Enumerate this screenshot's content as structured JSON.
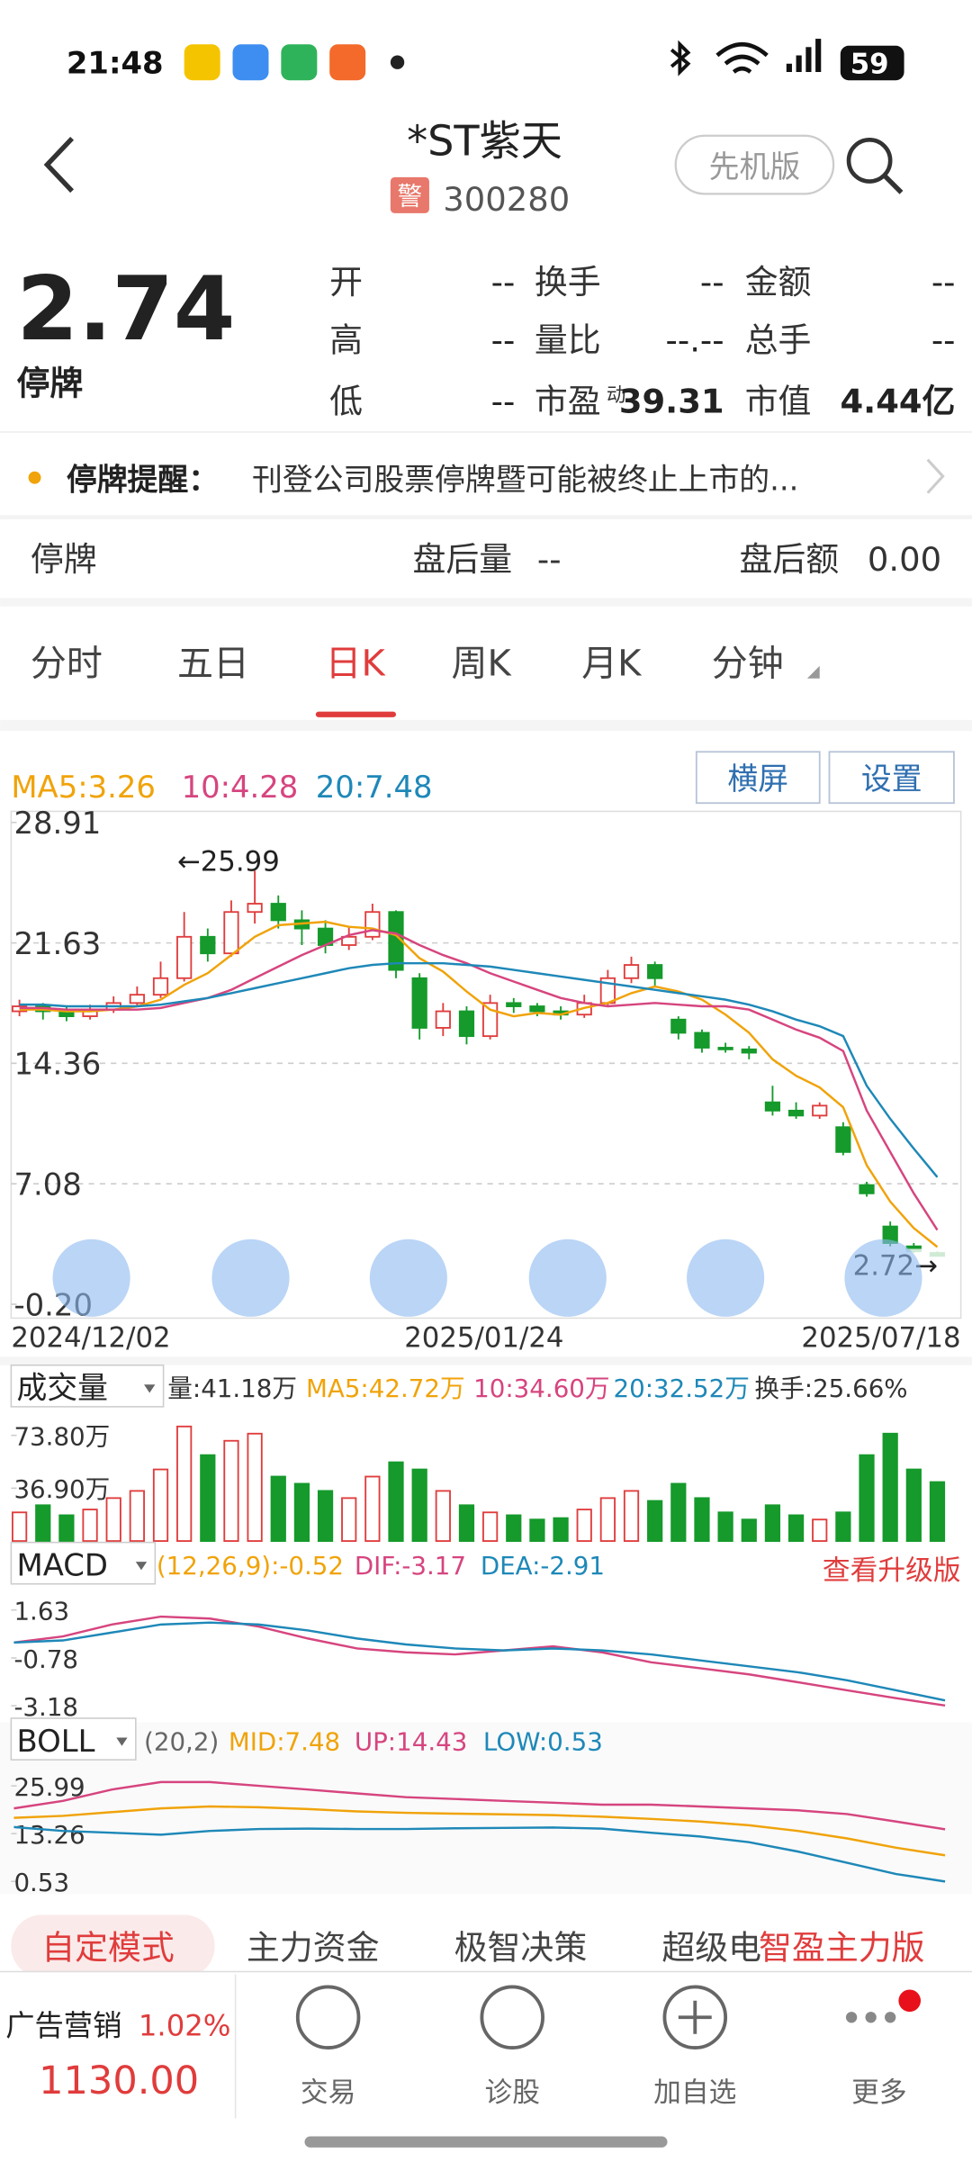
{
  "status_bar": {
    "time": "21:48",
    "battery": "59"
  },
  "header": {
    "title": "*ST紫天",
    "badge": "警",
    "code": "300280",
    "mode_button": "先机版"
  },
  "quote": {
    "price": "2.74",
    "state": "停牌",
    "stats": [
      [
        {
          "label": "开",
          "value": "--"
        },
        {
          "label": "换手",
          "value": "--"
        },
        {
          "label": "金额",
          "value": "--"
        }
      ],
      [
        {
          "label": "高",
          "value": "--"
        },
        {
          "label": "量比",
          "value": "--.--"
        },
        {
          "label": "总手",
          "value": "--"
        }
      ],
      [
        {
          "label": "低",
          "value": "--"
        },
        {
          "label": "市盈",
          "sup": "动",
          "value": "39.31"
        },
        {
          "label": "市值",
          "value": "4.44亿"
        }
      ]
    ]
  },
  "notice": {
    "title": "停牌提醒：",
    "text": "刊登公司股票停牌暨可能被终止上市的..."
  },
  "after_hours": {
    "state": "停牌",
    "volume_label": "盘后量",
    "volume_value": "--",
    "amount_label": "盘后额",
    "amount_value": "0.00"
  },
  "tabs": [
    "分时",
    "五日",
    "日K",
    "周K",
    "月K",
    "分钟"
  ],
  "chart_buttons": [
    "横屏",
    "设置"
  ],
  "kline": {
    "type": "candlestick",
    "legend": [
      "MA5:3.26",
      "10:4.28",
      "20:7.48"
    ],
    "ylim": [
      -0.2,
      28.91
    ],
    "yticks": [
      28.91,
      21.63,
      14.36,
      7.08,
      {
        "value": -0.2,
        "label": "-0.20"
      }
    ],
    "annotations": [
      "←25.99",
      "2.72→"
    ],
    "dates": [
      "2024/12/02",
      "2025/01/24",
      "2025/07/18"
    ],
    "candles": [
      [
        17.5,
        17.8,
        18.2,
        17.2
      ],
      [
        17.8,
        17.5,
        18.0,
        17.0
      ],
      [
        17.5,
        17.2,
        17.8,
        16.9
      ],
      [
        17.2,
        17.6,
        17.9,
        17.0
      ],
      [
        17.6,
        18.0,
        18.4,
        17.4
      ],
      [
        18.0,
        18.5,
        19.0,
        17.8
      ],
      [
        18.5,
        19.5,
        20.5,
        18.3
      ],
      [
        19.5,
        22.0,
        23.5,
        19.3
      ],
      [
        22.0,
        21.0,
        22.5,
        20.5
      ],
      [
        21.0,
        23.5,
        24.2,
        20.8
      ],
      [
        23.5,
        24.0,
        25.99,
        22.8
      ],
      [
        24.0,
        23.0,
        24.5,
        22.5
      ],
      [
        23.0,
        22.5,
        23.6,
        21.5
      ],
      [
        22.5,
        21.5,
        23.0,
        21.0
      ],
      [
        21.5,
        22.0,
        22.6,
        21.2
      ],
      [
        22.0,
        23.5,
        24.0,
        21.8
      ],
      [
        23.5,
        20.0,
        23.6,
        19.5
      ],
      [
        19.5,
        16.5,
        19.8,
        15.8
      ],
      [
        16.5,
        17.5,
        18.0,
        16.0
      ],
      [
        17.5,
        16.0,
        17.8,
        15.5
      ],
      [
        16.0,
        18.0,
        18.5,
        15.8
      ],
      [
        18.0,
        17.8,
        18.3,
        17.4
      ],
      [
        17.8,
        17.5,
        18.0,
        17.2
      ],
      [
        17.5,
        17.3,
        17.8,
        17.0
      ],
      [
        17.3,
        18.0,
        18.5,
        17.1
      ],
      [
        18.0,
        19.5,
        20.0,
        17.8
      ],
      [
        19.5,
        20.3,
        20.8,
        19.2
      ],
      [
        20.3,
        19.5,
        20.5,
        19.0
      ],
      [
        17.0,
        16.2,
        17.2,
        15.8
      ],
      [
        16.2,
        15.3,
        16.4,
        15.0
      ],
      [
        15.3,
        15.2,
        15.6,
        15.0
      ],
      [
        15.2,
        15.0,
        15.4,
        14.6
      ],
      [
        12.0,
        11.5,
        13.0,
        11.2
      ],
      [
        11.5,
        11.2,
        12.0,
        11.0
      ],
      [
        11.2,
        11.8,
        12.0,
        11.0
      ],
      [
        10.5,
        9.0,
        10.8,
        8.8
      ],
      [
        7.0,
        6.5,
        7.2,
        6.3
      ],
      [
        4.5,
        3.5,
        4.8,
        3.3
      ],
      [
        3.3,
        3.0,
        3.5,
        2.9
      ],
      [
        2.9,
        2.72,
        3.0,
        2.7
      ]
    ],
    "series": [
      {
        "name": "MA5",
        "color": "#f0a30a",
        "values": [
          17.6,
          17.6,
          17.5,
          17.5,
          17.6,
          17.8,
          18.2,
          19.1,
          19.8,
          20.9,
          22.0,
          22.7,
          22.8,
          22.9,
          22.6,
          22.5,
          22.1,
          20.7,
          19.9,
          18.7,
          17.6,
          17.2,
          17.4,
          17.3,
          17.7,
          18.0,
          18.6,
          19.0,
          18.7,
          18.2,
          17.3,
          16.2,
          14.6,
          13.6,
          12.9,
          11.7,
          8.2,
          6.0,
          4.4,
          3.26
        ]
      },
      {
        "name": "MA10",
        "color": "#d6457f",
        "values": [
          17.7,
          17.7,
          17.6,
          17.6,
          17.6,
          17.6,
          17.7,
          18.0,
          18.3,
          18.8,
          19.5,
          20.2,
          20.9,
          21.5,
          22.1,
          22.4,
          22.2,
          21.5,
          20.9,
          20.4,
          19.8,
          19.3,
          18.8,
          18.3,
          18.0,
          17.8,
          17.9,
          18.0,
          17.9,
          17.8,
          17.8,
          17.6,
          17.0,
          16.4,
          15.9,
          15.1,
          11.5,
          9.0,
          6.5,
          4.28
        ]
      },
      {
        "name": "MA20",
        "color": "#1e88b8",
        "values": [
          17.9,
          17.9,
          17.8,
          17.8,
          17.8,
          17.8,
          17.9,
          18.1,
          18.3,
          18.6,
          18.9,
          19.2,
          19.5,
          19.8,
          20.1,
          20.3,
          20.4,
          20.4,
          20.4,
          20.3,
          20.2,
          20.0,
          19.8,
          19.6,
          19.4,
          19.2,
          19.0,
          18.8,
          18.6,
          18.4,
          18.2,
          17.9,
          17.5,
          17.0,
          16.6,
          16.0,
          13.0,
          11.0,
          9.2,
          7.48
        ]
      }
    ]
  },
  "volume": {
    "type": "bar",
    "title": "成交量",
    "legend": [
      "量:41.18万",
      "MA5:42.72万",
      "10:34.60万",
      "20:32.52万",
      "换手:25.66%"
    ],
    "ylim": [
      0,
      88
    ],
    "yticks": [
      {
        "value": 73.8,
        "label": "73.80万"
      },
      {
        "value": 36.9,
        "label": "36.90万"
      }
    ],
    "values": [
      20,
      25,
      18,
      22,
      30,
      35,
      50,
      80,
      60,
      70,
      75,
      45,
      40,
      35,
      30,
      45,
      55,
      50,
      35,
      25,
      20,
      18,
      15,
      16,
      22,
      30,
      35,
      28,
      40,
      30,
      20,
      15,
      25,
      18,
      15,
      20,
      60,
      75,
      50,
      41.18
    ]
  },
  "macd": {
    "type": "line",
    "title": "MACD",
    "legend": [
      "(12,26,9):-0.52",
      "DIF:-3.17",
      "DEA:-2.91"
    ],
    "upgrade": "查看升级版",
    "ylim": [
      -3.6,
      2.8
    ],
    "yticks": [
      1.63,
      -0.78,
      -3.18
    ],
    "series": [
      {
        "name": "DIF",
        "color": "#d6457f",
        "values": [
          0.0,
          0.3,
          0.9,
          1.3,
          1.2,
          0.8,
          0.2,
          -0.3,
          -0.5,
          -0.6,
          -0.4,
          -0.2,
          -0.5,
          -1.0,
          -1.3,
          -1.6,
          -2.0,
          -2.4,
          -2.8,
          -3.17
        ]
      },
      {
        "name": "DEA",
        "color": "#1e88b8",
        "values": [
          0.0,
          0.1,
          0.5,
          0.9,
          1.0,
          0.9,
          0.6,
          0.2,
          -0.1,
          -0.3,
          -0.4,
          -0.3,
          -0.4,
          -0.6,
          -0.9,
          -1.2,
          -1.5,
          -1.9,
          -2.4,
          -2.91
        ]
      }
    ]
  },
  "boll": {
    "type": "line",
    "title": "BOLL",
    "legend": [
      "(20,2)",
      "MID:7.48",
      "UP:14.43",
      "LOW:0.53"
    ],
    "ylim": [
      -1,
      30
    ],
    "yticks": [
      25.99,
      13.26,
      0.53
    ],
    "series": [
      {
        "name": "UP",
        "color": "#d6457f",
        "values": [
          20,
          22,
          25,
          27,
          27,
          26,
          25,
          24,
          23,
          22.5,
          22,
          21.5,
          21,
          21,
          20.5,
          20,
          19.5,
          18.5,
          16.5,
          14.43
        ]
      },
      {
        "name": "MID",
        "color": "#f0a30a",
        "values": [
          17.5,
          18,
          19,
          20,
          20.5,
          20.3,
          19.8,
          19.2,
          18.8,
          18.6,
          18.4,
          18.2,
          17.8,
          17.2,
          16.5,
          15.5,
          14.0,
          12.0,
          9.5,
          7.48
        ]
      },
      {
        "name": "LOW",
        "color": "#1e88b8",
        "values": [
          15,
          14,
          13.5,
          13,
          14,
          14.5,
          14.6,
          14.5,
          14.5,
          14.7,
          14.8,
          14.9,
          14.6,
          13.5,
          12.5,
          11,
          8.5,
          5.5,
          2.5,
          0.53
        ]
      }
    ]
  },
  "bottom_tabs": [
    "自定模式",
    "主力资金",
    "极智决策",
    "超级电",
    "智盈主力版"
  ],
  "bottom_nav": {
    "ad_label": "广告营销",
    "ad_change": "1.02%",
    "ad_price": "1130.00",
    "items": [
      "交易",
      "诊股",
      "加自选",
      "更多"
    ]
  }
}
